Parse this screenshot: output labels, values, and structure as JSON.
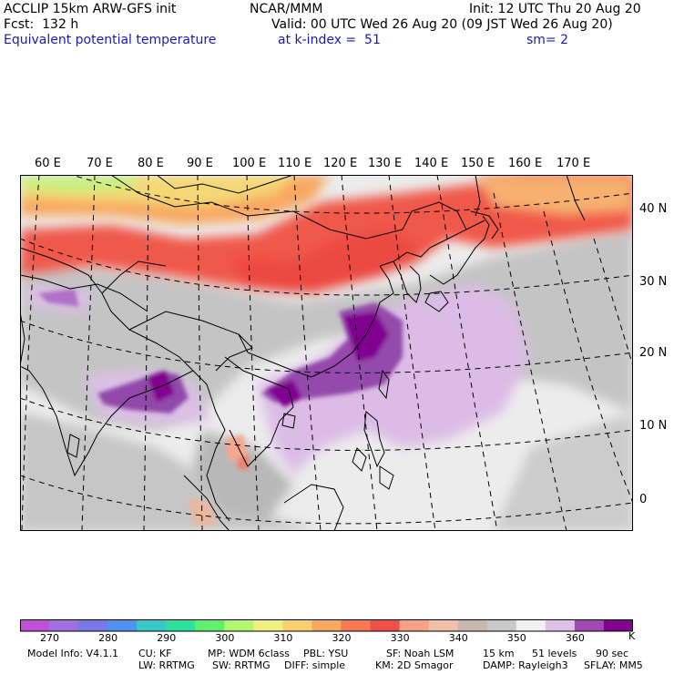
{
  "header": {
    "model": "ACCLIP 15km ARW-GFS init",
    "fcst": "Fcst:  132 h",
    "variable": "Equivalent potential temperature",
    "org": "NCAR/MMM",
    "init": "Init: 12 UTC Thu 20 Aug 20",
    "valid": "Valid: 00 UTC Wed 26 Aug 20 (09 JST Wed 26 Aug 20)",
    "level": "at k-index =  51",
    "smooth": "sm= 2"
  },
  "longitude_labels": [
    "60 E",
    "70 E",
    "80 E",
    "90 E",
    "100 E",
    "110 E",
    "120 E",
    "130 E",
    "140 E",
    "150 E",
    "160 E",
    "170 E"
  ],
  "latitude_labels": [
    "40 N",
    "30 N",
    "20 N",
    "10 N",
    "0"
  ],
  "colorbar": {
    "ticks": [
      "270",
      "280",
      "290",
      "300",
      "310",
      "320",
      "330",
      "340",
      "350",
      "360"
    ],
    "unit": "K",
    "colors": [
      "#c050d8",
      "#a070e0",
      "#7878e8",
      "#5090f0",
      "#38c8c8",
      "#30e0a0",
      "#60f070",
      "#b0f870",
      "#f0f080",
      "#f8d070",
      "#f8a860",
      "#f87850",
      "#f05048",
      "#f8a088",
      "#f0c0a8",
      "#c8b8b0",
      "#c8c8c8",
      "#f0f0f0",
      "#e0c0e8",
      "#a048b0",
      "#800090"
    ]
  },
  "footer": {
    "line1": [
      "Model Info: V4.1.1",
      "CU: KF",
      "MP: WDM 6class",
      "PBL: YSU",
      "SF: Noah LSM",
      "15 km",
      "51 levels",
      "90 sec"
    ],
    "line2": [
      "LW: RRTMG",
      "SW: RRTMG",
      "DIFF: simple",
      "KM: 2D Smagor",
      "DAMP: Rayleigh3",
      "SFLAY: MM5"
    ]
  }
}
